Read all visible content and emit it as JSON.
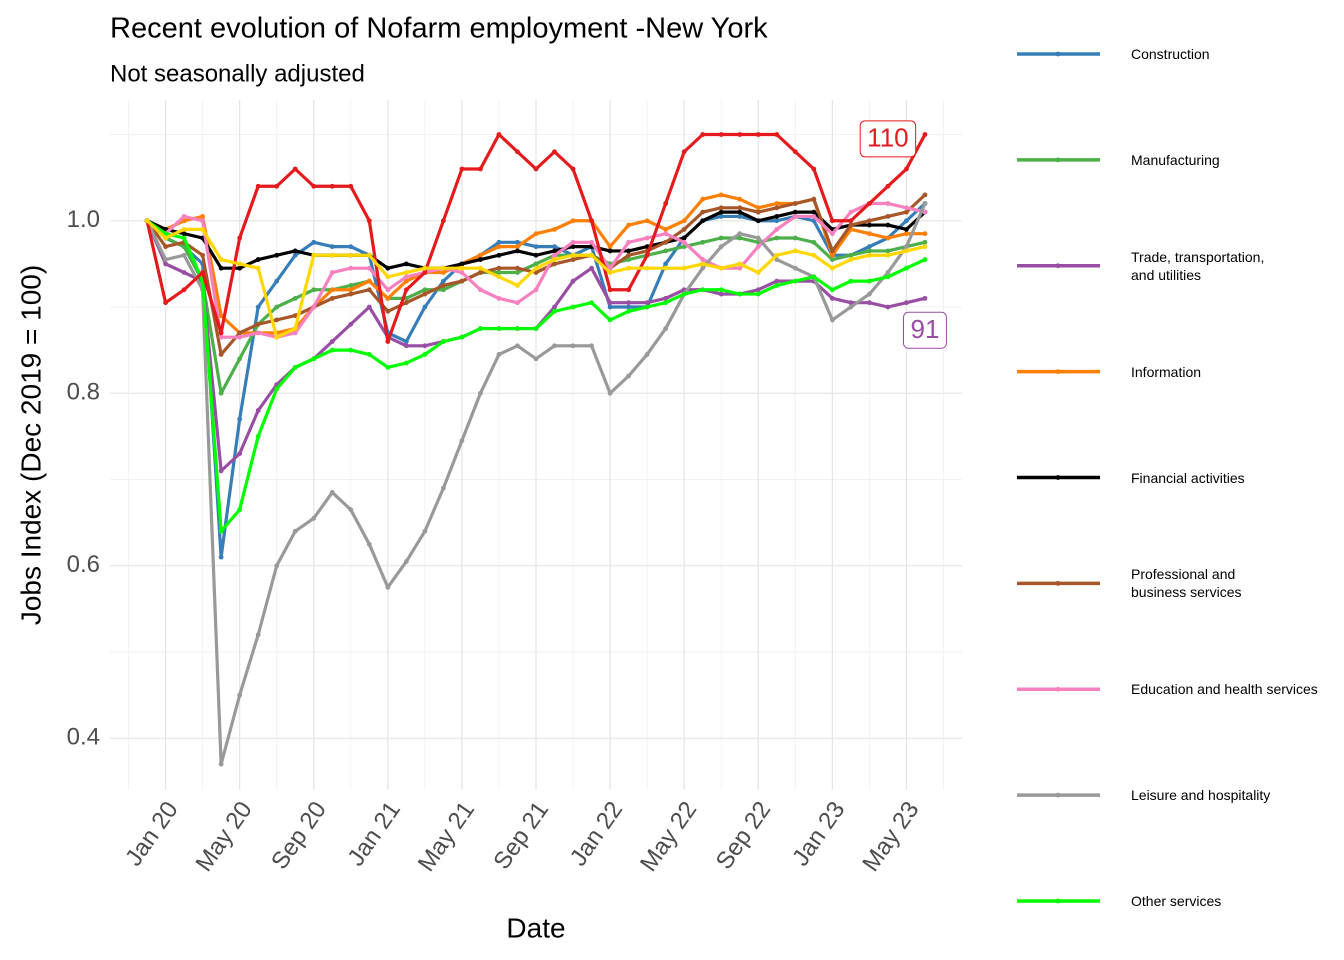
{
  "chart_data": {
    "type": "line",
    "title": "Recent evolution of Nofarm employment -New York",
    "subtitle": "Not seasonally adjusted",
    "x_label": "Date",
    "y_label": "Jobs Index (Dec 2019 = 100)",
    "x": [
      "2019-12",
      "2020-01",
      "2020-02",
      "2020-03",
      "2020-04",
      "2020-05",
      "2020-06",
      "2020-07",
      "2020-08",
      "2020-09",
      "2020-10",
      "2020-11",
      "2020-12",
      "2021-01",
      "2021-02",
      "2021-03",
      "2021-04",
      "2021-05",
      "2021-06",
      "2021-07",
      "2021-08",
      "2021-09",
      "2021-10",
      "2021-11",
      "2021-12",
      "2022-01",
      "2022-02",
      "2022-03",
      "2022-04",
      "2022-05",
      "2022-06",
      "2022-07",
      "2022-08",
      "2022-09",
      "2022-10",
      "2022-11",
      "2022-12",
      "2023-01",
      "2023-02",
      "2023-03",
      "2023-04",
      "2023-05",
      "2023-06"
    ],
    "xlim": [
      "2019-10",
      "2023-08"
    ],
    "xticks": [
      {
        "value": "2020-01",
        "label": "Jan 20"
      },
      {
        "value": "2020-05",
        "label": "May 20"
      },
      {
        "value": "2020-09",
        "label": "Sep 20"
      },
      {
        "value": "2021-01",
        "label": "Jan 21"
      },
      {
        "value": "2021-05",
        "label": "May 21"
      },
      {
        "value": "2021-09",
        "label": "Sep 21"
      },
      {
        "value": "2022-01",
        "label": "Jan 22"
      },
      {
        "value": "2022-05",
        "label": "May 22"
      },
      {
        "value": "2022-09",
        "label": "Sep 22"
      },
      {
        "value": "2023-01",
        "label": "Jan 23"
      },
      {
        "value": "2023-05",
        "label": "May 23"
      }
    ],
    "x_minor_ticks": [
      "2019-11",
      "2020-03",
      "2020-07",
      "2020-11",
      "2021-03",
      "2021-07",
      "2021-11",
      "2022-03",
      "2022-07",
      "2022-11",
      "2023-03",
      "2023-07"
    ],
    "ylim": [
      0.34,
      1.14
    ],
    "yticks": [
      0.4,
      0.6,
      0.8,
      {
        "value": 1.0,
        "label": "1.0"
      }
    ],
    "y_minor_ticks": [
      0.5,
      0.7,
      0.9,
      1.1
    ],
    "grid": true,
    "legend": "right",
    "series": [
      {
        "name": "Construction",
        "color": "#377eb8",
        "values": [
          1.0,
          0.98,
          0.97,
          0.95,
          0.61,
          0.77,
          0.9,
          0.93,
          0.96,
          0.975,
          0.97,
          0.97,
          0.96,
          0.87,
          0.86,
          0.9,
          0.93,
          0.95,
          0.96,
          0.975,
          0.975,
          0.97,
          0.97,
          0.96,
          0.97,
          0.9,
          0.9,
          0.9,
          0.95,
          0.98,
          1.0,
          1.005,
          1.005,
          1.0,
          1.0,
          1.005,
          1.0,
          0.96,
          0.96,
          0.97,
          0.98,
          1.0,
          1.02
        ]
      },
      {
        "name": "Manufacturing",
        "color": "#4daf4a",
        "values": [
          1.0,
          0.98,
          0.97,
          0.93,
          0.8,
          0.84,
          0.88,
          0.9,
          0.91,
          0.92,
          0.92,
          0.925,
          0.93,
          0.91,
          0.91,
          0.92,
          0.92,
          0.93,
          0.94,
          0.94,
          0.94,
          0.95,
          0.96,
          0.96,
          0.96,
          0.95,
          0.955,
          0.96,
          0.965,
          0.97,
          0.975,
          0.98,
          0.98,
          0.975,
          0.98,
          0.98,
          0.975,
          0.955,
          0.96,
          0.965,
          0.965,
          0.97,
          0.975
        ]
      },
      {
        "name": "Trade, transportation, and utilities",
        "color": "#984ea3",
        "values": [
          1.0,
          0.95,
          0.94,
          0.93,
          0.71,
          0.73,
          0.78,
          0.81,
          0.83,
          0.84,
          0.86,
          0.88,
          0.9,
          0.865,
          0.855,
          0.855,
          0.86,
          0.865,
          0.875,
          0.875,
          0.875,
          0.875,
          0.9,
          0.93,
          0.945,
          0.905,
          0.905,
          0.905,
          0.91,
          0.92,
          0.92,
          0.915,
          0.915,
          0.92,
          0.93,
          0.93,
          0.93,
          0.91,
          0.905,
          0.905,
          0.9,
          0.905,
          0.91
        ]
      },
      {
        "name": "Information",
        "color": "#ff7f00",
        "values": [
          1.0,
          0.99,
          1.0,
          1.005,
          0.89,
          0.87,
          0.87,
          0.87,
          0.875,
          0.9,
          0.92,
          0.92,
          0.93,
          0.91,
          0.93,
          0.94,
          0.94,
          0.95,
          0.96,
          0.97,
          0.97,
          0.985,
          0.99,
          1.0,
          1.0,
          0.97,
          0.995,
          1.0,
          0.99,
          1.0,
          1.025,
          1.03,
          1.025,
          1.015,
          1.02,
          1.02,
          1.025,
          0.96,
          0.99,
          0.985,
          0.98,
          0.985,
          0.985
        ]
      },
      {
        "name": "Financial activities",
        "color": "#000000",
        "values": [
          1.0,
          0.99,
          0.985,
          0.98,
          0.945,
          0.945,
          0.955,
          0.96,
          0.965,
          0.96,
          0.96,
          0.96,
          0.96,
          0.945,
          0.95,
          0.945,
          0.945,
          0.95,
          0.955,
          0.96,
          0.965,
          0.96,
          0.965,
          0.97,
          0.97,
          0.965,
          0.965,
          0.97,
          0.975,
          0.98,
          1.0,
          1.01,
          1.01,
          1.0,
          1.005,
          1.01,
          1.01,
          0.99,
          0.995,
          0.995,
          0.995,
          0.99,
          1.01
        ]
      },
      {
        "name": "Professional and business services",
        "color": "#a65628",
        "values": [
          1.0,
          0.97,
          0.975,
          0.96,
          0.845,
          0.87,
          0.88,
          0.885,
          0.89,
          0.9,
          0.91,
          0.915,
          0.92,
          0.895,
          0.905,
          0.915,
          0.925,
          0.93,
          0.94,
          0.945,
          0.945,
          0.94,
          0.95,
          0.955,
          0.96,
          0.945,
          0.96,
          0.965,
          0.975,
          0.99,
          1.01,
          1.015,
          1.015,
          1.01,
          1.015,
          1.02,
          1.025,
          0.965,
          0.995,
          1.0,
          1.005,
          1.01,
          1.03
        ]
      },
      {
        "name": "Education and health services",
        "color": "#f781bf",
        "values": [
          1.0,
          0.985,
          1.005,
          1.0,
          0.865,
          0.865,
          0.87,
          0.865,
          0.87,
          0.9,
          0.94,
          0.945,
          0.945,
          0.92,
          0.935,
          0.94,
          0.945,
          0.94,
          0.92,
          0.91,
          0.905,
          0.92,
          0.96,
          0.975,
          0.975,
          0.945,
          0.975,
          0.98,
          0.985,
          0.975,
          0.955,
          0.945,
          0.945,
          0.97,
          0.99,
          1.005,
          1.005,
          0.985,
          1.01,
          1.02,
          1.02,
          1.015,
          1.01
        ]
      },
      {
        "name": "Leisure and hospitality",
        "color": "#999999",
        "values": [
          1.0,
          0.955,
          0.96,
          0.92,
          0.37,
          0.45,
          0.52,
          0.6,
          0.64,
          0.655,
          0.685,
          0.665,
          0.625,
          0.575,
          0.605,
          0.64,
          0.69,
          0.745,
          0.8,
          0.845,
          0.855,
          0.84,
          0.855,
          0.855,
          0.855,
          0.8,
          0.82,
          0.845,
          0.875,
          0.915,
          0.945,
          0.97,
          0.985,
          0.98,
          0.955,
          0.945,
          0.935,
          0.885,
          0.9,
          0.915,
          0.94,
          0.97,
          1.02
        ]
      },
      {
        "name": "Other services",
        "color": "#00ff00",
        "values": [
          1.0,
          0.985,
          0.98,
          0.93,
          0.64,
          0.665,
          0.75,
          0.805,
          0.83,
          0.84,
          0.85,
          0.85,
          0.845,
          0.83,
          0.835,
          0.845,
          0.86,
          0.865,
          0.875,
          0.875,
          0.875,
          0.875,
          0.895,
          0.9,
          0.905,
          0.885,
          0.895,
          0.9,
          0.905,
          0.915,
          0.92,
          0.92,
          0.915,
          0.915,
          0.925,
          0.93,
          0.935,
          0.92,
          0.93,
          0.93,
          0.935,
          0.945,
          0.955
        ]
      },
      {
        "color": "#e41a1c",
        "values": [
          1.0,
          0.905,
          0.92,
          0.94,
          0.87,
          0.98,
          1.04,
          1.04,
          1.06,
          1.04,
          1.04,
          1.04,
          1.0,
          0.86,
          0.92,
          0.94,
          1.0,
          1.06,
          1.06,
          1.1,
          1.08,
          1.06,
          1.08,
          1.06,
          1.0,
          0.92,
          0.92,
          0.96,
          1.02,
          1.08,
          1.1,
          1.1,
          1.1,
          1.1,
          1.1,
          1.08,
          1.06,
          1.0,
          1.0,
          1.02,
          1.04,
          1.06,
          1.1
        ]
      },
      {
        "color": "#ffd700",
        "values": [
          1.0,
          0.98,
          0.99,
          0.99,
          0.955,
          0.95,
          0.945,
          0.865,
          0.875,
          0.96,
          0.96,
          0.96,
          0.96,
          0.935,
          0.94,
          0.945,
          0.945,
          0.945,
          0.945,
          0.935,
          0.925,
          0.945,
          0.955,
          0.96,
          0.96,
          0.94,
          0.945,
          0.945,
          0.945,
          0.945,
          0.95,
          0.945,
          0.95,
          0.94,
          0.96,
          0.965,
          0.96,
          0.945,
          0.955,
          0.96,
          0.96,
          0.965,
          0.97
        ]
      }
    ],
    "annotations": [
      {
        "label": "110",
        "x": "2023-04",
        "y": 1.095,
        "color": "#e41a1c"
      },
      {
        "label": "91",
        "x": "2023-06",
        "y": 0.873,
        "color": "#984ea3"
      }
    ]
  }
}
